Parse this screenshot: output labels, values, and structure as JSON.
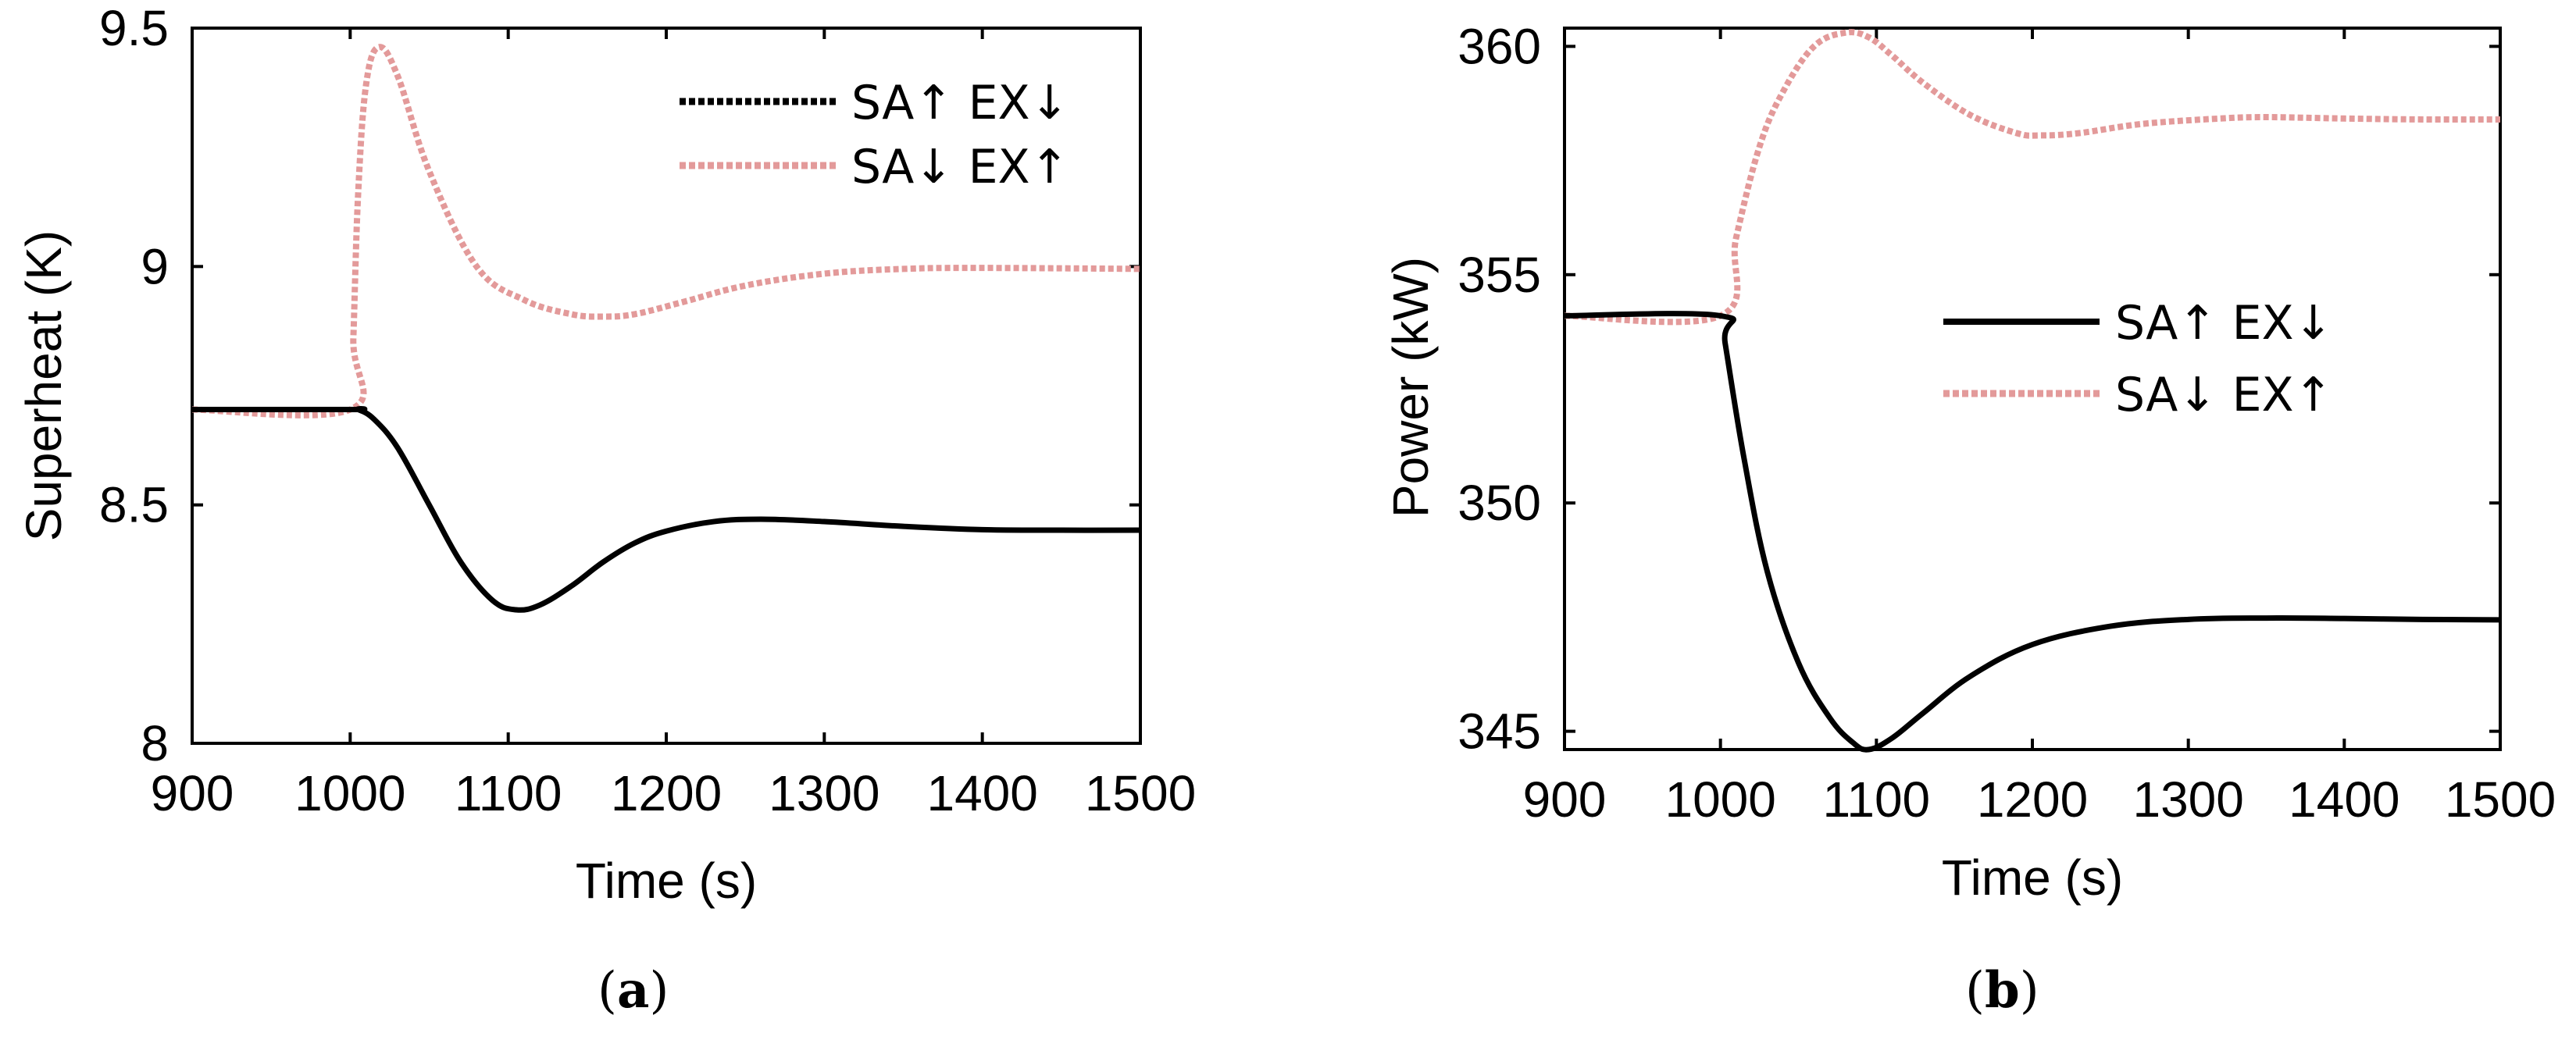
{
  "colors": {
    "solid": "#000000",
    "dashed": "#e39a9a"
  },
  "chart_data": [
    {
      "id": "a",
      "type": "line",
      "caption": "(a)",
      "caption_letter": "a",
      "xlabel": "Time (s)",
      "ylabel": "Superheat (K)",
      "xlim": [
        900,
        1500
      ],
      "ylim": [
        8,
        9.5
      ],
      "xticks": [
        900,
        1000,
        1100,
        1200,
        1300,
        1400,
        1500
      ],
      "xtick_labels": [
        "900",
        "1000",
        "1100",
        "1200",
        "1300",
        "1400",
        "1500"
      ],
      "yticks": [
        8,
        8.5,
        9,
        9.5
      ],
      "ytick_labels": [
        "8",
        "8.5",
        "9",
        "9.5"
      ],
      "legend_position": "top-right",
      "series": [
        {
          "name": "SA↑  EX↓",
          "style": "solid-black-with-dotted-legend",
          "x": [
            900,
            1000,
            1005,
            1015,
            1030,
            1050,
            1070,
            1090,
            1105,
            1120,
            1140,
            1160,
            1180,
            1200,
            1230,
            1260,
            1300,
            1350,
            1400,
            1450,
            1500
          ],
          "y": [
            8.7,
            8.7,
            8.7,
            8.68,
            8.62,
            8.5,
            8.38,
            8.3,
            8.28,
            8.29,
            8.33,
            8.38,
            8.42,
            8.445,
            8.465,
            8.47,
            8.465,
            8.455,
            8.448,
            8.447,
            8.447
          ]
        },
        {
          "name": "SA↓  EX↑",
          "style": "dashed-pink",
          "x": [
            900,
            1000,
            1002,
            1005,
            1010,
            1018,
            1030,
            1050,
            1080,
            1110,
            1140,
            1160,
            1180,
            1210,
            1250,
            1300,
            1350,
            1400,
            1500
          ],
          "y": [
            8.7,
            8.7,
            8.85,
            9.15,
            9.38,
            9.46,
            9.4,
            9.2,
            9.0,
            8.93,
            8.9,
            8.895,
            8.9,
            8.925,
            8.96,
            8.985,
            8.995,
            8.997,
            8.995
          ]
        }
      ]
    },
    {
      "id": "b",
      "type": "line",
      "caption": "(b)",
      "caption_letter": "b",
      "xlabel": "Time (s)",
      "ylabel": "Power (kW)",
      "xlim": [
        900,
        1500
      ],
      "ylim": [
        344.6,
        360.4
      ],
      "xticks": [
        900,
        1000,
        1100,
        1200,
        1300,
        1400,
        1500
      ],
      "xtick_labels": [
        "900",
        "1000",
        "1100",
        "1200",
        "1300",
        "1400",
        "1500"
      ],
      "yticks": [
        345,
        350,
        355,
        360
      ],
      "ytick_labels": [
        "345",
        "350",
        "355",
        "360"
      ],
      "legend_position": "center-right",
      "series": [
        {
          "name": "SA↑  EX↓",
          "style": "solid-black",
          "x": [
            900,
            1000,
            1003,
            1015,
            1030,
            1050,
            1070,
            1085,
            1095,
            1110,
            1130,
            1160,
            1200,
            1250,
            1300,
            1350,
            1400,
            1450,
            1500
          ],
          "y": [
            354.1,
            354.1,
            353.5,
            351.0,
            348.5,
            346.5,
            345.3,
            344.75,
            344.6,
            344.85,
            345.4,
            346.2,
            346.9,
            347.3,
            347.45,
            347.48,
            347.47,
            347.45,
            347.44
          ]
        },
        {
          "name": "SA↓  EX↑",
          "style": "dashed-pink",
          "x": [
            900,
            1000,
            1010,
            1025,
            1040,
            1060,
            1080,
            1095,
            1110,
            1130,
            1160,
            1190,
            1205,
            1230,
            1270,
            1320,
            1350,
            1400,
            1450,
            1500
          ],
          "y": [
            354.1,
            354.1,
            355.8,
            357.8,
            359.0,
            360.0,
            360.3,
            360.2,
            359.8,
            359.2,
            358.5,
            358.1,
            358.05,
            358.1,
            358.3,
            358.42,
            358.45,
            358.42,
            358.4,
            358.4
          ]
        }
      ]
    }
  ]
}
